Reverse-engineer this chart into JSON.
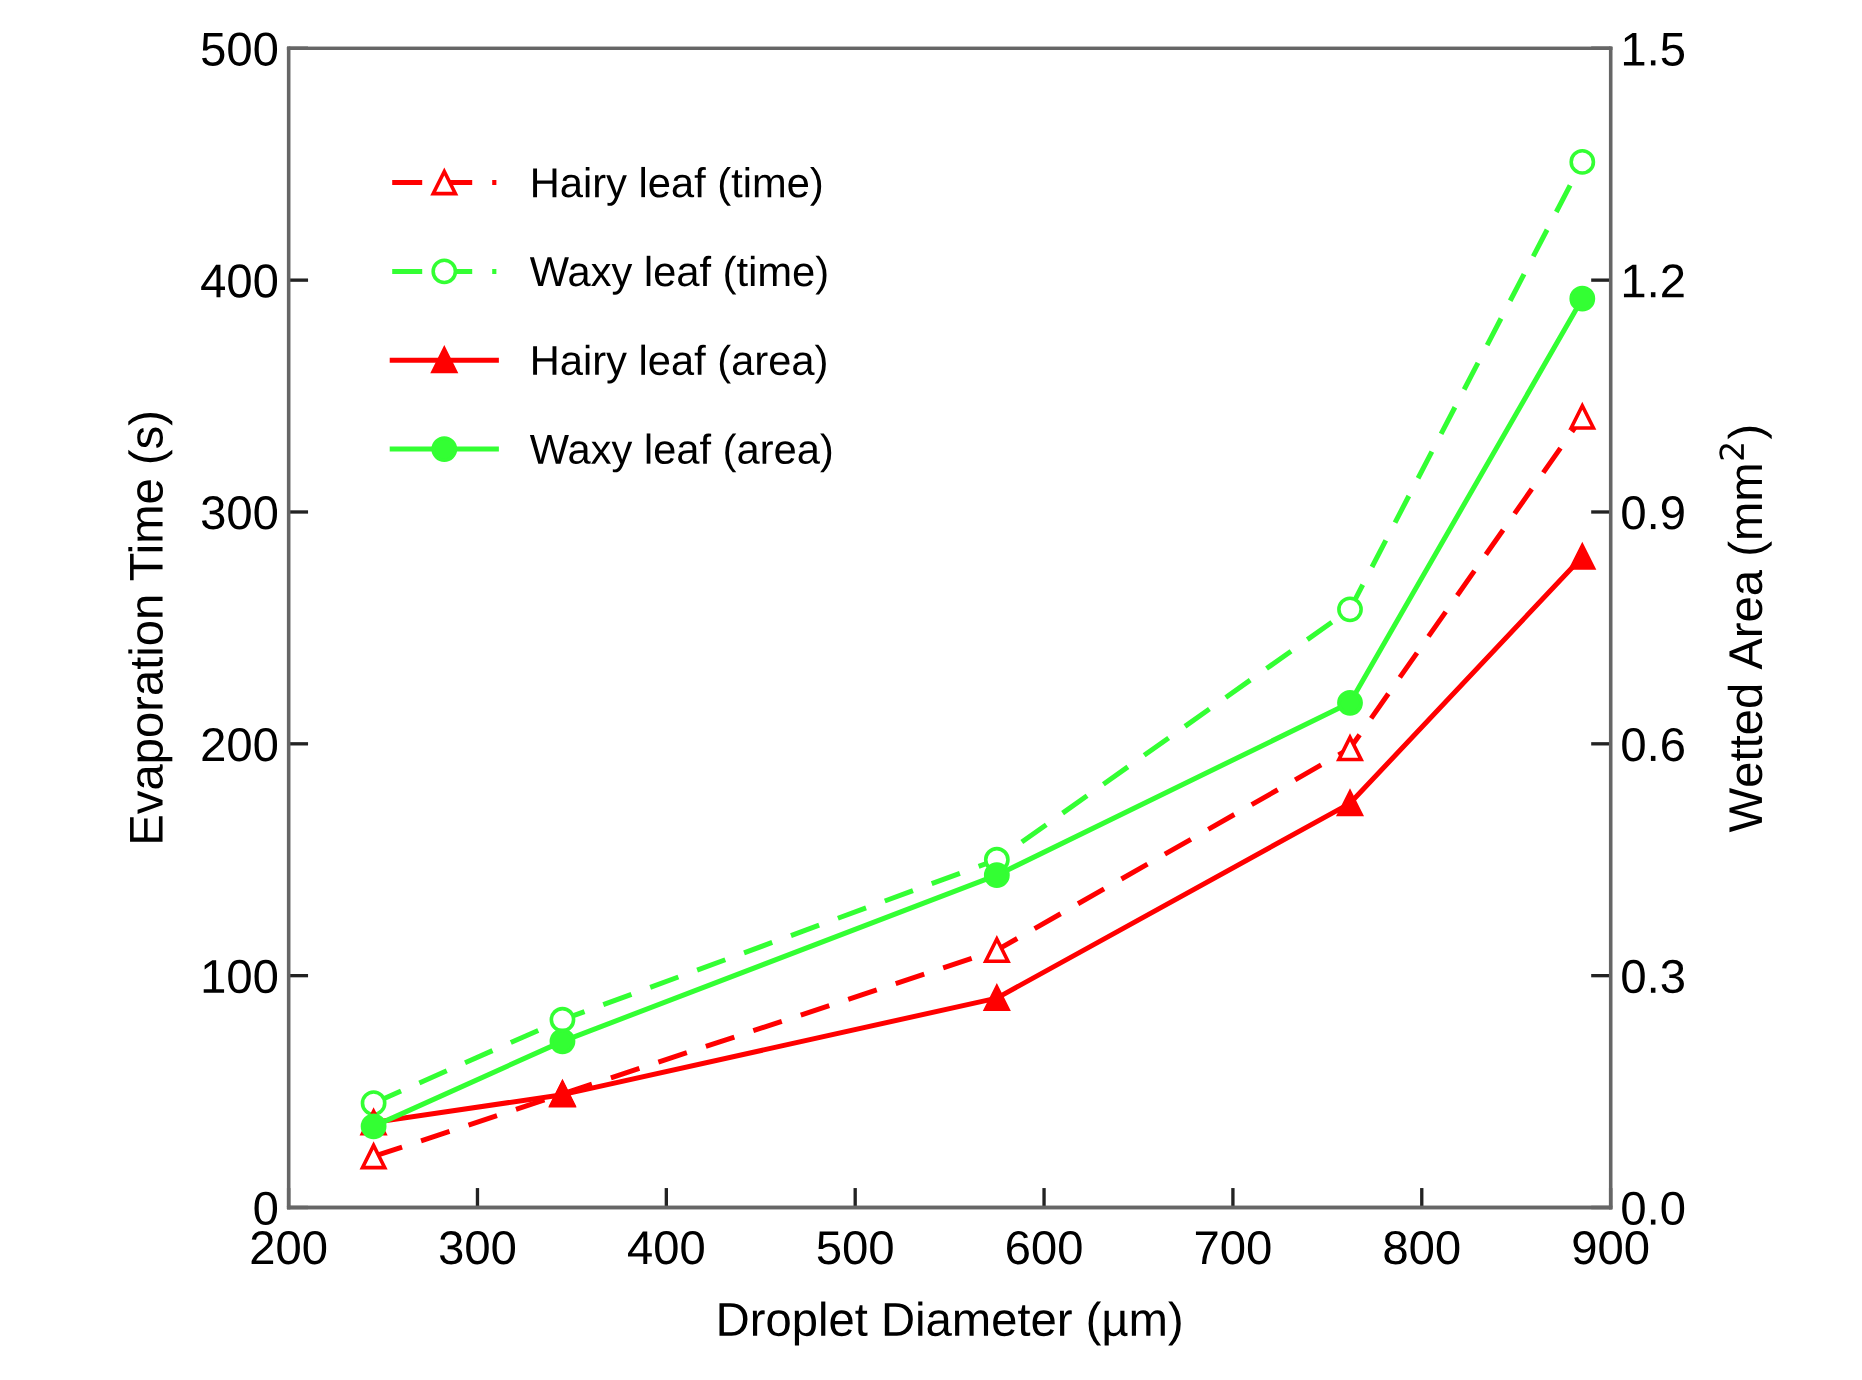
{
  "chart_data": {
    "type": "line",
    "xlabel": "Droplet Diameter (µm)",
    "ylabel": "Evaporation Time (s)",
    "y2label": "Wetted Area (mm$^{2}$)",
    "x": [
      245,
      345,
      575,
      762,
      885
    ],
    "series": [
      {
        "name": "Hairy leaf (time)",
        "color": "#ff0000",
        "marker": "triangle",
        "line_style": "dashed",
        "values": [
          22,
          49,
          111,
          198,
          341
        ]
      },
      {
        "name": "Waxy leaf (time)",
        "color": "#33ff33",
        "marker": "circle",
        "line_style": "dashed",
        "values": [
          45,
          81,
          150,
          258,
          451
        ]
      },
      {
        "name": "Hairy leaf (area)",
        "color": "#ff0000",
        "marker": "triangle",
        "line_style": "solid",
        "axis": "y2",
        "values": [
          0.11,
          0.146,
          0.271,
          0.523,
          0.842
        ]
      },
      {
        "name": "Waxy leaf (area)",
        "color": "#33ff33",
        "marker": "circle",
        "line_style": "solid",
        "axis": "y2",
        "values": [
          0.105,
          0.215,
          0.43,
          0.653,
          1.176
        ]
      }
    ],
    "xlim": [
      200,
      900
    ],
    "xticks": [
      200,
      300,
      400,
      500,
      600,
      700,
      800,
      900
    ],
    "ylim": [
      0,
      500
    ],
    "yticks": [
      0,
      100,
      200,
      300,
      400,
      500
    ],
    "y2lim": [
      0,
      1.5
    ],
    "y2ticks": [
      {
        "value": 0,
        "label": "0.0"
      },
      {
        "value": 0.3,
        "label": "0.3"
      },
      {
        "value": 0.6,
        "label": "0.6"
      },
      {
        "value": 0.9,
        "label": "0.9"
      },
      {
        "value": 1.2,
        "label": "1.2"
      },
      {
        "value": 1.5,
        "label": "1.5"
      }
    ],
    "legend": "top left",
    "grid": false
  }
}
